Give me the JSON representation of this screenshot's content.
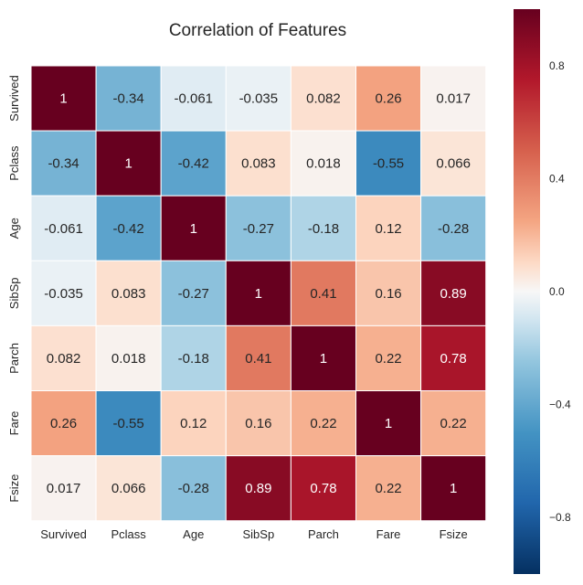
{
  "chart_data": {
    "type": "heatmap",
    "title": "Correlation of Features",
    "xlabels": [
      "Survived",
      "Pclass",
      "Age",
      "SibSp",
      "Parch",
      "Fare",
      "Fsize"
    ],
    "ylabels": [
      "Survived",
      "Pclass",
      "Age",
      "SibSp",
      "Parch",
      "Fare",
      "Fsize"
    ],
    "values": [
      [
        1,
        -0.34,
        -0.061,
        -0.035,
        0.082,
        0.26,
        0.017
      ],
      [
        -0.34,
        1,
        -0.42,
        0.083,
        0.018,
        -0.55,
        0.066
      ],
      [
        -0.061,
        -0.42,
        1,
        -0.27,
        -0.18,
        0.12,
        -0.28
      ],
      [
        -0.035,
        0.083,
        -0.27,
        1,
        0.41,
        0.16,
        0.89
      ],
      [
        0.082,
        0.018,
        -0.18,
        0.41,
        1,
        0.22,
        0.78
      ],
      [
        0.26,
        -0.55,
        0.12,
        0.16,
        0.22,
        1,
        0.22
      ],
      [
        0.017,
        0.066,
        -0.28,
        0.89,
        0.78,
        0.22,
        1
      ]
    ],
    "labels": [
      [
        "1",
        "-0.34",
        "-0.061",
        "-0.035",
        "0.082",
        "0.26",
        "0.017"
      ],
      [
        "-0.34",
        "1",
        "-0.42",
        "0.083",
        "0.018",
        "-0.55",
        "0.066"
      ],
      [
        "-0.061",
        "-0.42",
        "1",
        "-0.27",
        "-0.18",
        "0.12",
        "-0.28"
      ],
      [
        "-0.035",
        "0.083",
        "-0.27",
        "1",
        "0.41",
        "0.16",
        "0.89"
      ],
      [
        "0.082",
        "0.018",
        "-0.18",
        "0.41",
        "1",
        "0.22",
        "0.78"
      ],
      [
        "0.26",
        "-0.55",
        "0.12",
        "0.16",
        "0.22",
        "1",
        "0.22"
      ],
      [
        "0.017",
        "0.066",
        "-0.28",
        "0.89",
        "0.78",
        "0.22",
        "1"
      ]
    ],
    "colormap": "RdBu_r",
    "vmin": -1.0,
    "vmax": 1.0,
    "colorbar": {
      "ticks": [
        0.8,
        0.4,
        0.0,
        -0.4,
        -0.8
      ],
      "tick_labels": [
        "0.8",
        "0.4",
        "0.0",
        "−0.4",
        "−0.8"
      ]
    },
    "text_colors": {
      "dark": "#262626",
      "light": "#ffffff"
    }
  }
}
